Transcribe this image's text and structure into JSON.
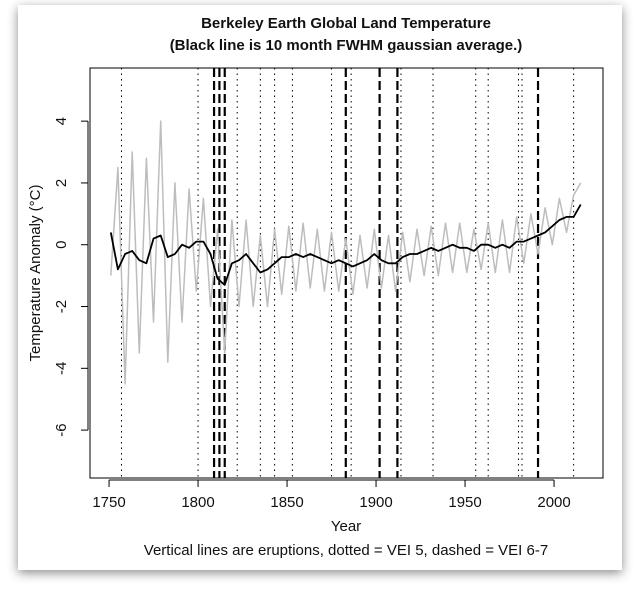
{
  "chart_data": {
    "type": "line",
    "title": "Berkeley Earth Global Land Temperature",
    "subtitle": "(Black line is 10 month FWHM gaussian average.)",
    "x_label": "Year",
    "y_label": "Temperature Anomaly (°C)",
    "note": "Vertical lines are eruptions, dotted = VEI 5, dashed = VEI 6-7",
    "xlim": [
      1739.3,
      2027.5
    ],
    "ylim": [
      -7.55,
      5.72
    ],
    "xticks": [
      1750,
      1800,
      1850,
      1900,
      1950,
      2000
    ],
    "yticks": [
      -6,
      -4,
      -2,
      0,
      2,
      4
    ],
    "x": [
      1751,
      1755,
      1759,
      1763,
      1767,
      1771,
      1775,
      1779,
      1783,
      1787,
      1791,
      1795,
      1799,
      1803,
      1807,
      1811,
      1815,
      1819,
      1823,
      1827,
      1831,
      1835,
      1839,
      1843,
      1847,
      1851,
      1855,
      1859,
      1863,
      1867,
      1871,
      1875,
      1879,
      1883,
      1887,
      1891,
      1895,
      1899,
      1903,
      1907,
      1911,
      1915,
      1919,
      1923,
      1927,
      1931,
      1935,
      1939,
      1943,
      1947,
      1951,
      1955,
      1959,
      1963,
      1967,
      1971,
      1975,
      1979,
      1983,
      1987,
      1991,
      1995,
      1999,
      2003,
      2007,
      2011,
      2015
    ],
    "series": [
      {
        "color": "#bdbdbd",
        "values": [
          -1.0,
          2.5,
          -4.5,
          3.0,
          -3.5,
          2.8,
          -2.5,
          4.0,
          -3.8,
          2.0,
          -2.5,
          1.8,
          -1.5,
          1.5,
          -2.0,
          0.5,
          -3.5,
          0.8,
          -2.0,
          0.8,
          -2.0,
          0.3,
          -2.0,
          0.5,
          -1.6,
          0.6,
          -1.5,
          0.7,
          -1.4,
          0.5,
          -1.5,
          0.4,
          -1.5,
          0.2,
          -1.6,
          0.3,
          -1.4,
          0.5,
          -1.4,
          0.3,
          -1.5,
          0.4,
          -1.2,
          0.5,
          -1.0,
          0.6,
          -1.0,
          0.7,
          -0.9,
          0.7,
          -0.9,
          0.5,
          -0.8,
          0.7,
          -0.9,
          0.8,
          -0.9,
          0.9,
          -0.6,
          1.0,
          -0.3,
          1.2,
          0.0,
          1.5,
          0.4,
          1.6,
          2.0
        ]
      },
      {
        "color": "#000000",
        "values": [
          0.4,
          -0.8,
          -0.3,
          -0.2,
          -0.5,
          -0.6,
          0.2,
          0.3,
          -0.4,
          -0.3,
          0.0,
          -0.1,
          0.1,
          0.1,
          -0.3,
          -1.1,
          -1.3,
          -0.6,
          -0.5,
          -0.3,
          -0.6,
          -0.9,
          -0.8,
          -0.6,
          -0.4,
          -0.4,
          -0.3,
          -0.4,
          -0.3,
          -0.4,
          -0.5,
          -0.6,
          -0.5,
          -0.6,
          -0.7,
          -0.6,
          -0.5,
          -0.3,
          -0.5,
          -0.6,
          -0.6,
          -0.4,
          -0.3,
          -0.3,
          -0.2,
          -0.1,
          -0.2,
          -0.1,
          0.0,
          -0.1,
          -0.1,
          -0.2,
          0.0,
          0.0,
          -0.1,
          0.0,
          -0.1,
          0.1,
          0.1,
          0.2,
          0.3,
          0.4,
          0.6,
          0.8,
          0.9,
          0.9,
          1.3
        ]
      }
    ],
    "vei5_years": [
      1757,
      1800,
      1822,
      1835,
      1843,
      1853,
      1875,
      1886,
      1914,
      1932,
      1956,
      1963,
      1980,
      1982,
      2011
    ],
    "vei67_years": [
      1809,
      1812,
      1815,
      1883,
      1902,
      1912,
      1991
    ]
  }
}
